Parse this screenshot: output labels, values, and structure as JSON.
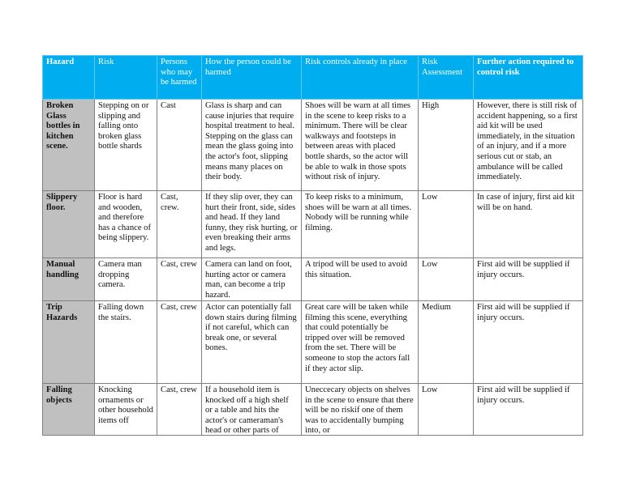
{
  "colors": {
    "header_bg": "#00aeef",
    "header_text": "#ffffff",
    "hazard_col_bg": "#c0c0c0"
  },
  "headers": [
    "Hazard",
    "Risk",
    "Persons who may be harmed",
    "How the person could be harmed",
    "Risk controls already in place",
    "Risk Assessment",
    "Further action required to control risk"
  ],
  "rows": [
    {
      "hazard": "Broken Glass bottles in kitchen scene.",
      "risk": "Stepping on or slipping and falling onto broken glass bottle shards",
      "persons": "Cast",
      "how": "Glass is sharp and can cause injuries that require hospital treatment to heal. Stepping on the glass can mean the glass going into the actor's foot, slipping means many places on their body.",
      "controls": "Shoes will be warn at all times in the scene to keep risks to a minimum. There will be clear walkways and footsteps in between areas with placed bottle shards, so the actor will be able to walk in those spots without risk of injury.",
      "assessment": "High",
      "further": "However, there is still risk of accident happening, so a first aid kit will be used immediately, in the situation of an injury, and if a more serious cut or stab, an ambulance will be called immediately."
    },
    {
      "hazard": "Slippery floor.",
      "risk": "Floor is hard and wooden, and therefore has a chance of being slippery.",
      "persons": "Cast, crew.",
      "how": "If they slip over, they can hurt their front, side, sides and head. If they land funny, they risk hurting, or even breaking their arms and legs.",
      "controls": "To keep risks to a minimum, shoes will be warn at all times. Nobody will be running while filming.",
      "assessment": "Low",
      "further": "In case of injury, first aid kit will be on hand."
    },
    {
      "hazard": "Manual handling",
      "risk": "Camera man dropping camera.",
      "persons": "Cast, crew",
      "how": "Camera can land on foot, hurting actor or camera man, can become a trip hazard.",
      "controls": "A tripod will be used to avoid this situation.",
      "assessment": "Low",
      "further": "First aid will be supplied if injury occurs."
    },
    {
      "hazard": "Trip Hazards",
      "risk": "Falling down the stairs.",
      "persons": "Cast, crew",
      "how": "Actor can potentially fall down stairs during filming if not careful, which can break one, or several bones.",
      "controls": "Great care will be taken while filming this scene, everything that could potentially be tripped over will be removed from the set. There will be someone to stop the actors fall if they actor slip.",
      "assessment": "Medium",
      "further": "First aid will be supplied if injury occurs."
    },
    {
      "hazard": "Falling objects",
      "risk": "Knocking ornaments or other household items off",
      "persons": "Cast, crew",
      "how": "If a household item is knocked off a high shelf or a table and hits the actor's or cameraman's head or other parts of",
      "controls": "Uneccecary objects on shelves in the scene  to ensure that there will be no riskif one of them was to accidentally bumping into, or",
      "assessment": "Low",
      "further": "First aid will be supplied if injury occurs."
    }
  ]
}
